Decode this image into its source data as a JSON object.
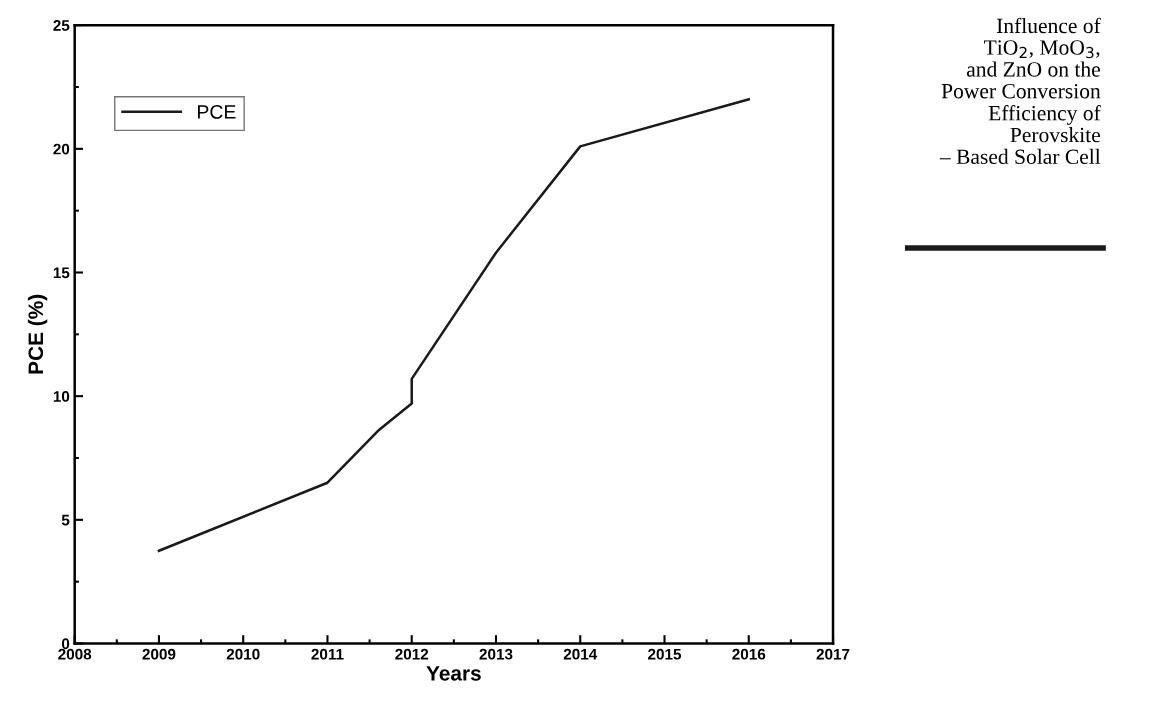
{
  "chart_data": {
    "type": "line",
    "xlabel": "Years",
    "ylabel": "PCE (%)",
    "x": [
      2009,
      2011,
      2011.6,
      2012,
      2012,
      2013,
      2014,
      2016
    ],
    "series": [
      {
        "name": "PCE",
        "color": "#1a1a1a",
        "values": [
          3.75,
          6.5,
          8.6,
          9.7,
          10.7,
          15.8,
          20.1,
          22.0
        ]
      }
    ],
    "xlim": [
      2008,
      2017
    ],
    "xticks": [
      2008,
      2009,
      2010,
      2011,
      2012,
      2013,
      2014,
      2015,
      2016,
      2017
    ],
    "ylim": [
      0,
      25
    ],
    "yticks": [
      0,
      5,
      10,
      15,
      20,
      25
    ],
    "legend": "top left",
    "grid": false,
    "marker": "none",
    "line_style": "solid",
    "annotations": [
      "Influence of\nTiO$_{2}$, MoO$_{3}$,\nand ZnO on the\nPower Conversion\nEfficiency of\nPerovskite\n– Based Solar Cell"
    ]
  }
}
